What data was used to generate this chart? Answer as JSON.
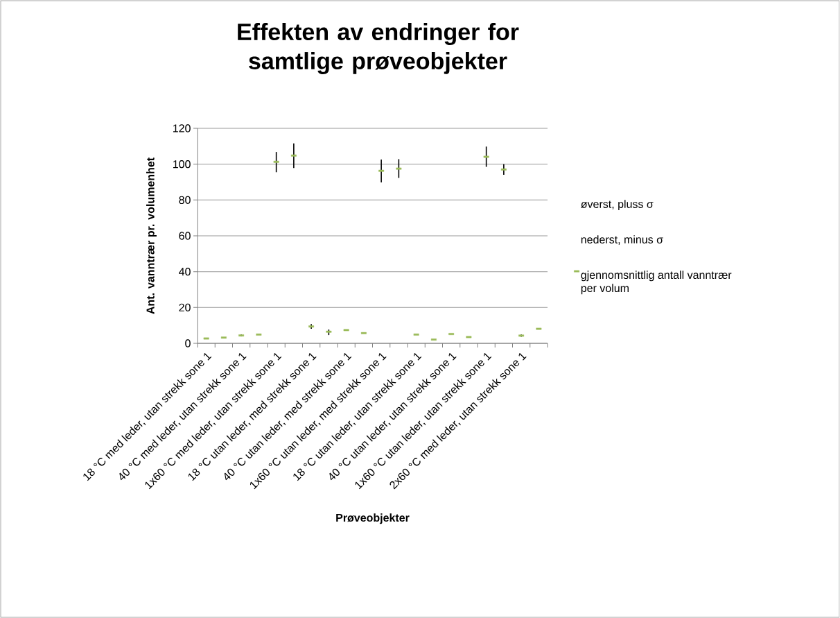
{
  "chart_data": {
    "type": "scatter",
    "title": "Effekten av endringer for samtlige prøveobjekter",
    "xlabel": "Prøveobjekter",
    "ylabel": "Ant. vanntrær pr. volumenhet",
    "annotations": [
      "øverst, pluss σ",
      "nederst, minus σ"
    ],
    "categories": [
      "18 °C med leder, utan strekk sone 1",
      null,
      "40 °C med leder, utan strekk sone 1",
      null,
      "1x60 °C med leder, utan strekk sone 1",
      null,
      "18 °C utan leder, med strekk sone 1",
      null,
      "40 °C utan leder, med strekk sone 1",
      null,
      "1x60 °C utan leder, med strekk sone 1",
      null,
      "18 °C utan leder, utan strekk sone 1",
      null,
      "40 °C utan leder, utan strekk sone 1",
      null,
      "1x60 °C utan leder, utan strekk sone 1",
      null,
      "2x60 °C med leder, utan strekk sone 1",
      null
    ],
    "series": [
      {
        "name": "gjennomsnittlig antall vanntrær per volum",
        "color": "#9bbb59",
        "marker": "square",
        "values": [
          2.7,
          3.2,
          4.4,
          4.9,
          101.3,
          104.8,
          9.4,
          6.5,
          7.4,
          5.7,
          96.3,
          97.5,
          4.9,
          2.1,
          5.2,
          3.5,
          104.1,
          97.0,
          4.3,
          8.1
        ],
        "errors": [
          null,
          null,
          [
            3.9,
            4.9
          ],
          null,
          [
            95.5,
            106.8
          ],
          [
            97.8,
            111.6
          ],
          [
            8.1,
            10.7
          ],
          [
            4.6,
            7.7
          ],
          null,
          null,
          [
            89.8,
            102.6
          ],
          [
            92.3,
            102.8
          ],
          null,
          null,
          null,
          null,
          [
            98.5,
            109.8
          ],
          [
            94.1,
            100.0
          ],
          [
            3.7,
            4.9
          ],
          null
        ]
      }
    ],
    "ylim": [
      0,
      120
    ],
    "yticks": [
      0,
      20,
      40,
      60,
      80,
      100,
      120
    ],
    "grid": "y",
    "legend": "right"
  }
}
